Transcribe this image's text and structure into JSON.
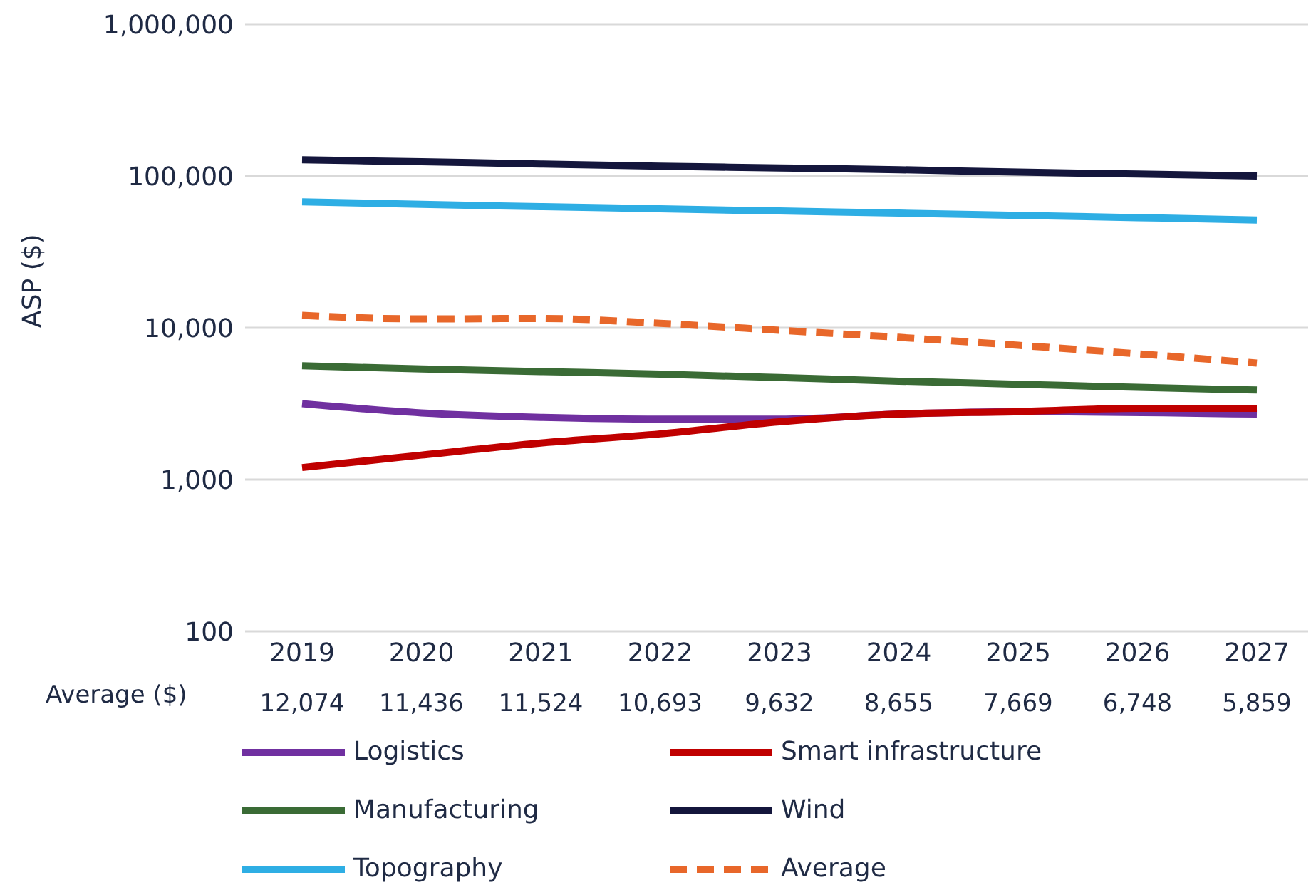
{
  "chart_data": {
    "type": "line",
    "ylabel": "ASP ($)",
    "categories": [
      "2019",
      "2020",
      "2021",
      "2022",
      "2023",
      "2024",
      "2025",
      "2026",
      "2027"
    ],
    "log": true,
    "ylim": [
      100,
      1000000
    ],
    "yticks": [
      {
        "value": 100,
        "label": "100"
      },
      {
        "value": 1000,
        "label": "1,000"
      },
      {
        "value": 10000,
        "label": "10,000"
      },
      {
        "value": 100000,
        "label": "100,000"
      },
      {
        "value": 1000000,
        "label": "1,000,000"
      }
    ],
    "grid": "y",
    "legend": "bottom",
    "marker": "none",
    "annotations": [
      "Average ($)"
    ],
    "series": [
      {
        "name": "Logistics",
        "color": "#7030a0",
        "values": [
          3160,
          2750,
          2570,
          2500,
          2500,
          2700,
          2800,
          null,
          2700
        ]
      },
      {
        "name": "Smart infrastructure",
        "color": "#c00000",
        "values": [
          1200,
          1450,
          1740,
          2000,
          2400,
          2700,
          2800,
          2950,
          2950
        ]
      },
      {
        "name": "Manufacturing",
        "color": "#3a6b35",
        "values": [
          5620,
          5350,
          5150,
          4950,
          4700,
          4450,
          4250,
          4050,
          3890
        ]
      },
      {
        "name": "Wind",
        "color": "#14163c",
        "values": [
          128000,
          124000,
          120000,
          116000,
          113000,
          110000,
          106000,
          103000,
          100000
        ]
      },
      {
        "name": "Topography",
        "color": "#2eaee4",
        "values": [
          67600,
          65000,
          62800,
          60800,
          58800,
          57000,
          55000,
          53200,
          51300
        ]
      },
      {
        "name": "Average",
        "color": "#e8672a",
        "line_style": "dashed",
        "values": [
          12074,
          11436,
          11524,
          10693,
          9632,
          8655,
          7669,
          6748,
          5859
        ],
        "value_labels": [
          "12,074",
          "11,436",
          "11,524",
          "10,693",
          "9,632",
          "8,655",
          "7,669",
          "6,748",
          "5,859"
        ]
      }
    ]
  }
}
